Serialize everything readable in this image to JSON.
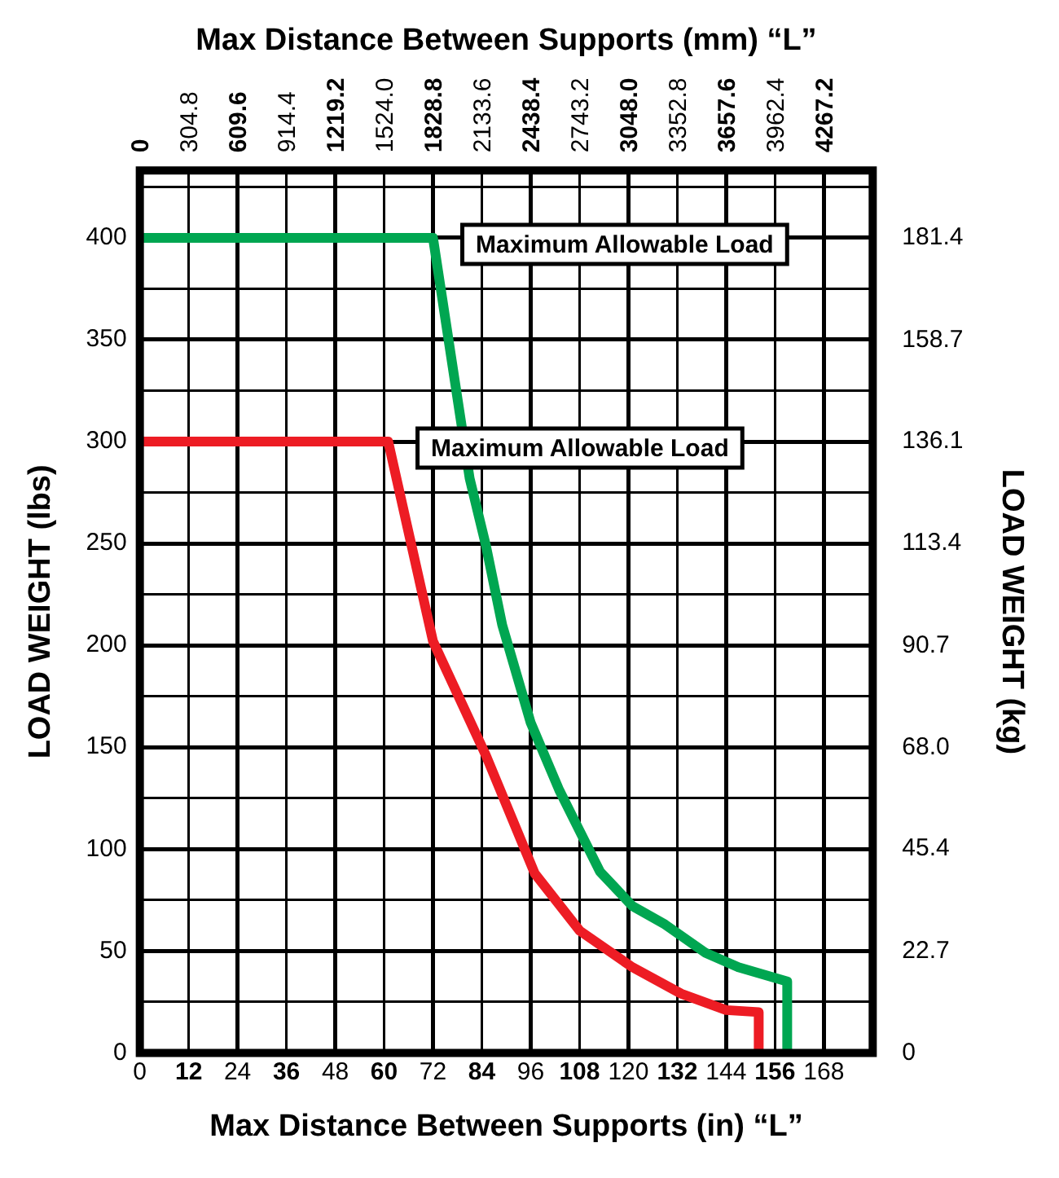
{
  "chart_data": {
    "type": "line",
    "xlabel": "Max Distance Between Supports (in) “L”",
    "x2label": "Max Distance Between Supports (mm) “L”",
    "ylabel": "LOAD WEIGHT (lbs)",
    "y2label": "LOAD WEIGHT (kg)",
    "series": [
      {
        "color": "#00a651",
        "x": [
          0,
          72,
          81,
          85,
          89,
          96,
          103,
          113,
          121,
          129,
          139,
          147,
          159,
          159
        ],
        "values": [
          400,
          400,
          282,
          249,
          210,
          162,
          129,
          89,
          72,
          63,
          49,
          42,
          35,
          0
        ]
      },
      {
        "color": "#ed1c24",
        "x": [
          0,
          61,
          72,
          85,
          97,
          108,
          121,
          133,
          144,
          152,
          152
        ],
        "values": [
          300,
          300,
          202,
          146,
          88,
          60,
          42,
          29,
          21,
          20,
          0
        ]
      }
    ],
    "annotations": [
      "Maximum Allowable Load",
      "Maximum Allowable Load"
    ],
    "xlim": [
      0,
      180
    ],
    "xticks": [
      0,
      12,
      24,
      36,
      48,
      60,
      72,
      84,
      96,
      108,
      120,
      132,
      144,
      156,
      168
    ],
    "x2lim": [
      0,
      4572
    ],
    "x2ticks": [
      0,
      304.8,
      609.6,
      914.4,
      1219.2,
      {
        "value": 1524,
        "label": "1524.0"
      },
      1828.8,
      2133.6,
      2438.4,
      2743.2,
      {
        "value": 3048,
        "label": "3048.0"
      },
      3352.8,
      3657.6,
      3962.4,
      4267.2
    ],
    "ylim": [
      0,
      433
    ],
    "yticks": [
      0,
      {
        "value": 25,
        "label": null
      },
      50,
      {
        "value": 75,
        "label": null
      },
      100,
      {
        "value": 125,
        "label": null
      },
      150,
      {
        "value": 175,
        "label": null
      },
      200,
      {
        "value": 225,
        "label": null
      },
      250,
      {
        "value": 275,
        "label": null
      },
      300,
      {
        "value": 325,
        "label": null
      },
      350,
      {
        "value": 375,
        "label": null
      },
      400,
      {
        "value": 425,
        "label": null
      }
    ],
    "y2lim": [
      0,
      196.4
    ],
    "y2ticks": [
      0,
      22.7,
      45.4,
      {
        "value": 68,
        "label": "68.0"
      },
      90.7,
      113.4,
      136.1,
      158.7,
      181.4
    ],
    "grid": true,
    "legend": false,
    "marker": "none",
    "line_style": "solid"
  }
}
